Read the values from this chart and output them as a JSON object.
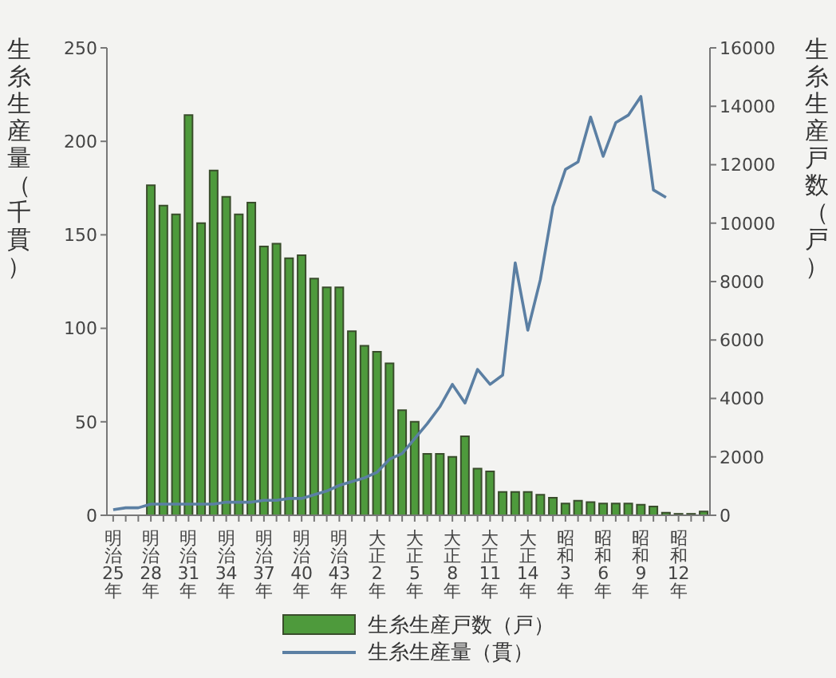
{
  "chart_data": {
    "type": "bar",
    "ylabel": "生糸生産量（千貫）",
    "y2label": "生糸生産戸数（戸）",
    "categories": [
      "明治25年",
      null,
      null,
      "明治28年",
      null,
      null,
      "明治31年",
      null,
      null,
      "明治34年",
      null,
      null,
      "明治37年",
      null,
      null,
      "明治40年",
      null,
      null,
      "明治43年",
      null,
      null,
      "大正2年",
      null,
      null,
      "大正5年",
      null,
      null,
      "大正8年",
      null,
      null,
      "大正11年",
      null,
      null,
      "大正14年",
      null,
      null,
      "昭和3年",
      null,
      null,
      "昭和6年",
      null,
      null,
      "昭和9年",
      null,
      null,
      "昭和12年",
      null,
      null
    ],
    "series": [
      {
        "name": "生糸生産戸数（戸）",
        "axis": "y2",
        "color": "#4e9a3c",
        "values": [
          null,
          null,
          null,
          11300,
          10600,
          10300,
          13700,
          10000,
          11800,
          10900,
          10300,
          10700,
          9200,
          9300,
          8800,
          8900,
          8100,
          7800,
          7800,
          6300,
          5800,
          5600,
          5200,
          3600,
          3200,
          2100,
          2100,
          2000,
          2700,
          1600,
          1500,
          800,
          800,
          800,
          700,
          600,
          400,
          500,
          450,
          400,
          400,
          400,
          360,
          300,
          90,
          50,
          50,
          130
        ]
      },
      {
        "name": "生糸生産量（貫）",
        "type": "line",
        "axis": "y",
        "color": "#5b7fa3",
        "values": [
          3,
          4,
          4,
          6,
          6,
          6,
          6,
          6,
          6,
          7,
          7,
          7,
          8,
          8,
          9,
          9,
          11,
          13,
          16,
          18,
          20,
          23,
          30,
          33,
          41,
          49,
          58,
          70,
          60,
          78,
          70,
          75,
          135,
          99,
          126,
          165,
          185,
          189,
          213,
          192,
          210,
          214,
          224,
          174,
          170,
          null,
          null,
          null
        ]
      }
    ],
    "ylim": [
      0,
      250
    ],
    "yticks": [
      0,
      50,
      100,
      150,
      200,
      250
    ],
    "y2lim": [
      0,
      16000
    ],
    "y2ticks": [
      0,
      2000,
      4000,
      6000,
      8000,
      10000,
      12000,
      14000,
      16000
    ],
    "grid": false,
    "legend": "bottom",
    "marker": "none"
  }
}
